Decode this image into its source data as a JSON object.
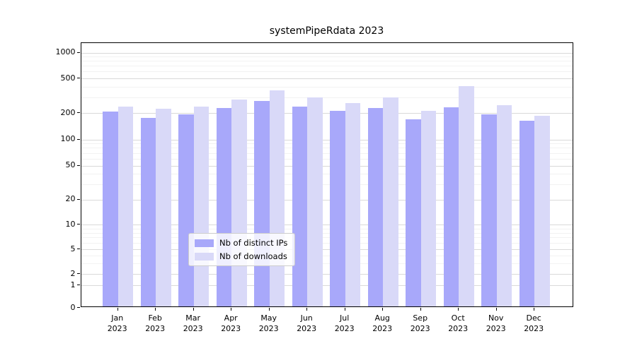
{
  "title": "systemPipeRdata 2023",
  "colors": {
    "distinct_ips_bar": "#a8a8fa",
    "downloads_bar": "#d9d9f8",
    "grid_major": "#d9d9d9",
    "grid_minor": "#f2f2f2",
    "axis": "#000000",
    "legend_border": "#cccccc"
  },
  "legend": {
    "items": [
      {
        "label": "Nb of distinct IPs",
        "color": "#a8a8fa"
      },
      {
        "label": "Nb of downloads",
        "color": "#d9d9f8"
      }
    ]
  },
  "chart_data": {
    "type": "bar",
    "title": "systemPipeRdata 2023",
    "categories": [
      "Jan 2023",
      "Feb 2023",
      "Mar 2023",
      "Apr 2023",
      "May 2023",
      "Jun 2023",
      "Jul 2023",
      "Aug 2023",
      "Sep 2023",
      "Oct 2023",
      "Nov 2023",
      "Dec 2023"
    ],
    "series": [
      {
        "name": "Nb of distinct IPs",
        "color": "#a8a8fa",
        "values": [
          200,
          170,
          185,
          220,
          265,
          230,
          205,
          218,
          162,
          225,
          185,
          157
        ]
      },
      {
        "name": "Nb of downloads",
        "color": "#d9d9f8",
        "values": [
          230,
          215,
          230,
          276,
          350,
          292,
          252,
          292,
          205,
          390,
          238,
          180
        ]
      }
    ],
    "xlabel": "",
    "ylabel": "",
    "yscale": "log(x+1)",
    "yticks": [
      1000,
      500,
      200,
      100,
      50,
      20,
      10,
      5,
      2,
      1,
      0
    ],
    "minor_gridlines": [
      3,
      4,
      6,
      7,
      8,
      9,
      30,
      40,
      60,
      70,
      80,
      90,
      300,
      400,
      600,
      700,
      800,
      900
    ],
    "ylim": [
      0,
      1200
    ],
    "grid": "horizontal major+minor",
    "legend_position": "lower center"
  }
}
